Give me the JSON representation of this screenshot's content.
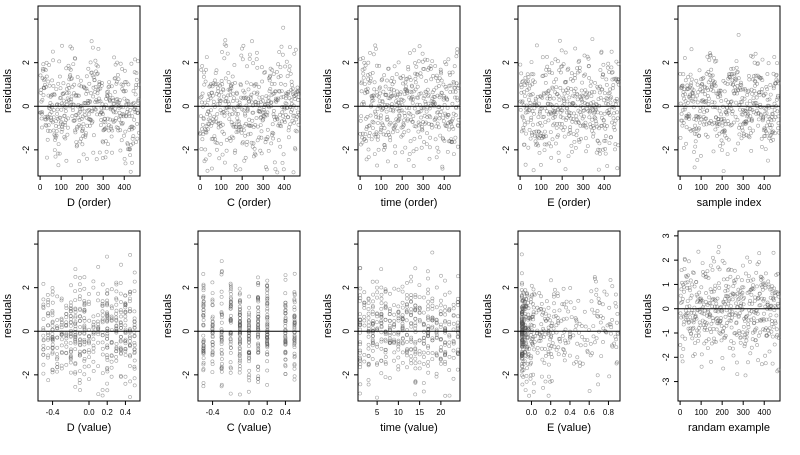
{
  "chart_data": [
    {
      "type": "scatter",
      "xlabel": "D (order)",
      "ylabel": "residuals",
      "xlim": [
        -10,
        475
      ],
      "ylim": [
        -3.2,
        4.6
      ],
      "xticks": [
        0,
        100,
        200,
        300,
        400
      ],
      "yticks": [
        -2,
        0,
        2,
        4
      ],
      "ytick_labels": [
        "-2",
        "0",
        "2",
        ""
      ],
      "hline": 0,
      "n_points": 470,
      "x_kind": "index",
      "pattern": "clusters",
      "seed": 11
    },
    {
      "type": "scatter",
      "xlabel": "C (order)",
      "ylabel": "residuals",
      "xlim": [
        -10,
        475
      ],
      "ylim": [
        -3.2,
        4.6
      ],
      "xticks": [
        0,
        100,
        200,
        300,
        400
      ],
      "yticks": [
        -2,
        0,
        2,
        4
      ],
      "ytick_labels": [
        "-2",
        "0",
        "2",
        ""
      ],
      "hline": 0,
      "n_points": 470,
      "x_kind": "index",
      "pattern": "uniform",
      "seed": 23
    },
    {
      "type": "scatter",
      "xlabel": "time (order)",
      "ylabel": "residuals",
      "xlim": [
        -10,
        475
      ],
      "ylim": [
        -3.2,
        4.6
      ],
      "xticks": [
        0,
        100,
        200,
        300,
        400
      ],
      "yticks": [
        -2,
        0,
        2,
        4
      ],
      "ytick_labels": [
        "-2",
        "0",
        "2",
        ""
      ],
      "hline": 0,
      "n_points": 470,
      "x_kind": "index",
      "pattern": "uniform",
      "seed": 37
    },
    {
      "type": "scatter",
      "xlabel": "E (order)",
      "ylabel": "residuals",
      "xlim": [
        -10,
        475
      ],
      "ylim": [
        -3.2,
        4.6
      ],
      "xticks": [
        0,
        100,
        200,
        300,
        400
      ],
      "yticks": [
        -2,
        0,
        2,
        4
      ],
      "ytick_labels": [
        "-2",
        "0",
        "2",
        ""
      ],
      "hline": 0,
      "n_points": 470,
      "x_kind": "index",
      "pattern": "uniform",
      "seed": 41
    },
    {
      "type": "scatter",
      "xlabel": "sample index",
      "ylabel": "residuals",
      "xlim": [
        -10,
        475
      ],
      "ylim": [
        -3.2,
        4.6
      ],
      "xticks": [
        0,
        100,
        200,
        300,
        400
      ],
      "yticks": [
        -2,
        0,
        2,
        4
      ],
      "ytick_labels": [
        "-2",
        "0",
        "2",
        ""
      ],
      "hline": 0,
      "n_points": 470,
      "x_kind": "index",
      "pattern": "clusters",
      "seed": 53
    },
    {
      "type": "scatter",
      "xlabel": "D (value)",
      "ylabel": "residuals",
      "xlim": [
        -0.56,
        0.56
      ],
      "ylim": [
        -3.2,
        4.6
      ],
      "xticks": [
        -0.4,
        0.0,
        0.2,
        0.4
      ],
      "xtick_labels": [
        "-0.4",
        "0.0",
        "0.2",
        "0.4"
      ],
      "yticks": [
        -2,
        0,
        2,
        4
      ],
      "ytick_labels": [
        "-2",
        "0",
        "2",
        ""
      ],
      "hline": 0,
      "n_points": 470,
      "x_kind": "value",
      "x_levels": [
        -0.5,
        -0.45,
        -0.4,
        -0.35,
        -0.3,
        -0.25,
        -0.2,
        -0.15,
        -0.1,
        -0.05,
        0.0,
        0.05,
        0.1,
        0.15,
        0.2,
        0.25,
        0.3,
        0.35,
        0.4,
        0.45,
        0.5
      ],
      "seed": 61
    },
    {
      "type": "scatter",
      "xlabel": "C (value)",
      "ylabel": "residuals",
      "xlim": [
        -0.56,
        0.56
      ],
      "ylim": [
        -3.2,
        4.6
      ],
      "xticks": [
        -0.4,
        0.0,
        0.2,
        0.4
      ],
      "xtick_labels": [
        "-0.4",
        "0.0",
        "0.2",
        "0.4"
      ],
      "yticks": [
        -2,
        0,
        2,
        4
      ],
      "ytick_labels": [
        "-2",
        "0",
        "2",
        ""
      ],
      "hline": 0,
      "n_points": 470,
      "x_kind": "value",
      "x_levels": [
        -0.5,
        -0.4,
        -0.3,
        -0.2,
        -0.1,
        0.0,
        0.1,
        0.2,
        0.4,
        0.5
      ],
      "seed": 71
    },
    {
      "type": "scatter",
      "xlabel": "time (value)",
      "ylabel": "residuals",
      "xlim": [
        0.5,
        24.5
      ],
      "ylim": [
        -3.2,
        4.6
      ],
      "xticks": [
        5,
        10,
        15,
        20
      ],
      "xtick_labels": [
        "5",
        "10",
        "15",
        "20"
      ],
      "yticks": [
        -2,
        0,
        2,
        4
      ],
      "ytick_labels": [
        "-2",
        "0",
        "2",
        ""
      ],
      "hline": 0,
      "n_points": 470,
      "x_kind": "value",
      "x_levels": [
        1,
        2,
        3,
        4,
        5,
        6,
        7,
        8,
        9,
        10,
        11,
        12,
        13,
        14,
        15,
        16,
        17,
        18,
        19,
        20,
        21,
        22,
        23,
        24
      ],
      "seed": 83
    },
    {
      "type": "scatter",
      "xlabel": "E (value)",
      "ylabel": "residuals",
      "xlim": [
        -0.14,
        0.92
      ],
      "ylim": [
        -3.2,
        4.6
      ],
      "xticks": [
        0.0,
        0.2,
        0.4,
        0.6,
        0.8
      ],
      "xtick_labels": [
        "0.0",
        "0.2",
        "0.4",
        "0.6",
        "0.8"
      ],
      "yticks": [
        -2,
        0,
        2,
        4
      ],
      "ytick_labels": [
        "-2",
        "0",
        "2",
        ""
      ],
      "hline": 0,
      "n_points": 470,
      "x_kind": "skewed",
      "seed": 97
    },
    {
      "type": "scatter",
      "xlabel": "randam example",
      "ylabel": "residuals",
      "xlim": [
        -10,
        475
      ],
      "ylim": [
        -3.8,
        3.2
      ],
      "xticks": [
        0,
        100,
        200,
        300,
        400
      ],
      "yticks": [
        -3,
        -2,
        -1,
        0,
        1,
        2,
        3
      ],
      "ytick_labels": [
        "-3",
        "-2",
        "-1",
        "0",
        "1",
        "2",
        "3"
      ],
      "hline": 0,
      "n_points": 470,
      "x_kind": "index",
      "pattern": "random",
      "seed": 101
    }
  ],
  "style": {
    "point_color": "#555555",
    "point_opacity": 0.55,
    "axis_color": "#000000"
  }
}
